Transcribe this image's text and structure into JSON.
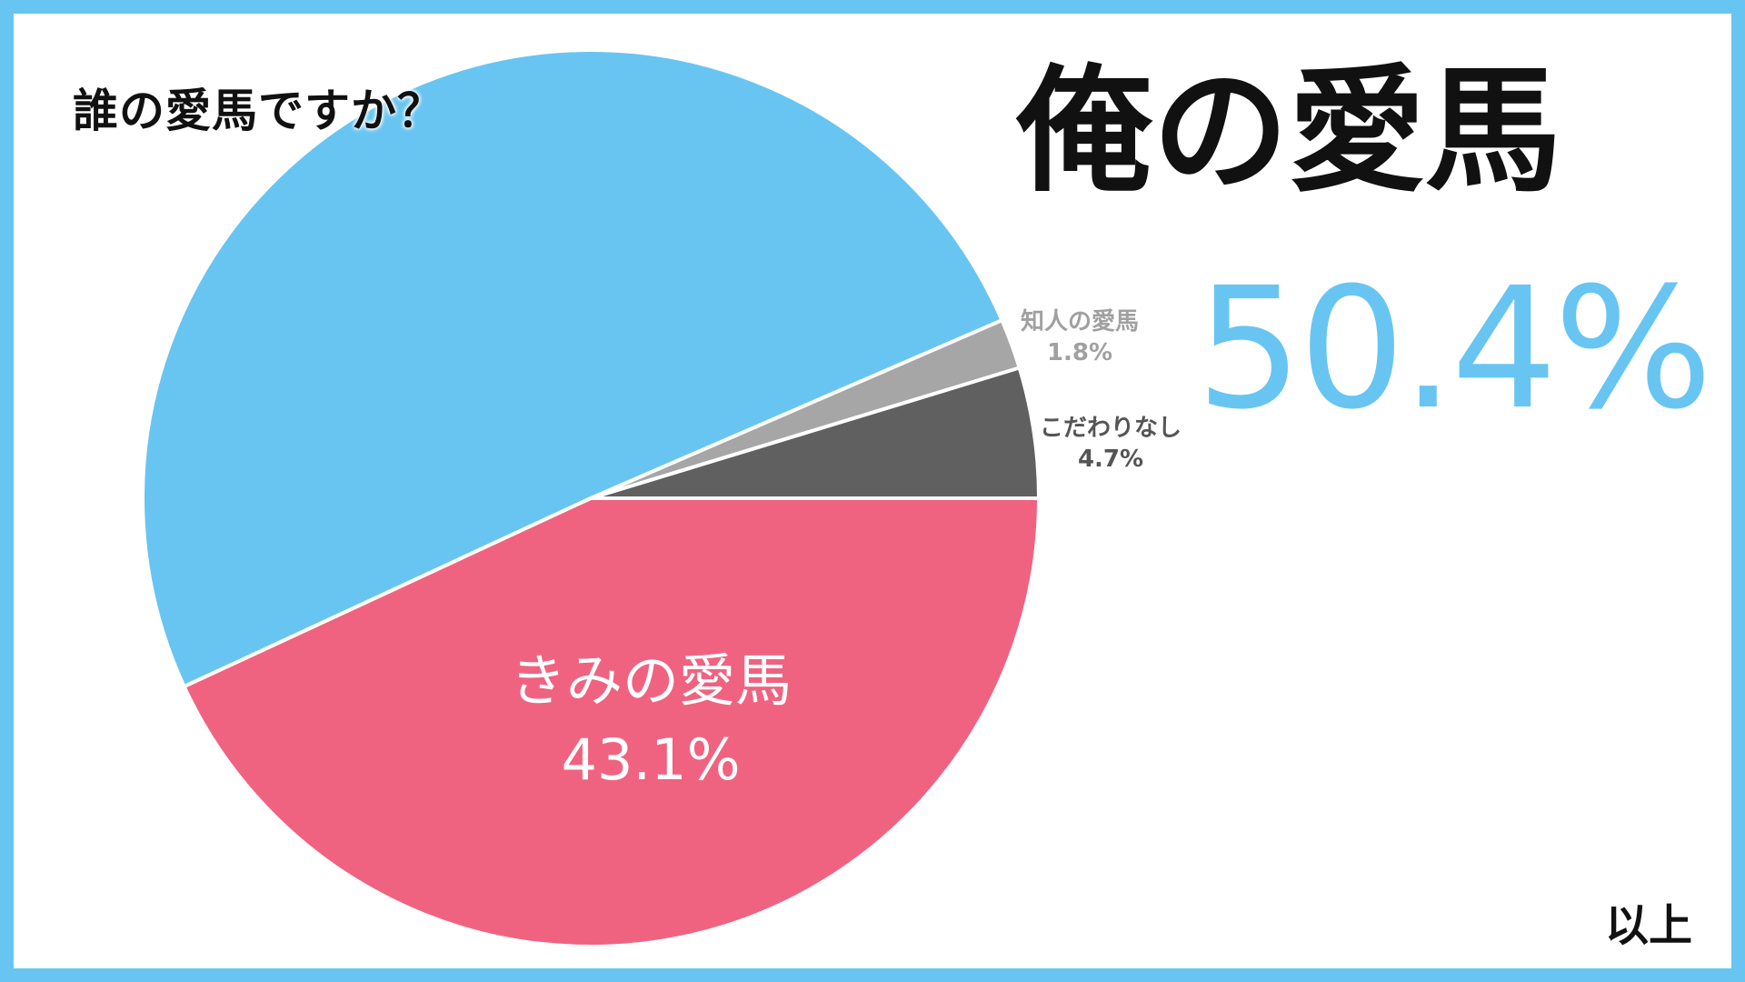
{
  "question": "誰の愛馬ですか？",
  "headline": "俺の愛馬",
  "headline_percent": "50.4%",
  "footer": "以上",
  "colors": {
    "frame": "#68c5f2",
    "ore": "#68c5f2",
    "kimi": "#f06380",
    "chijin": "#a6a6a6",
    "kodawari": "#606060"
  },
  "chart_data": {
    "type": "pie",
    "title": "誰の愛馬ですか？",
    "slices": [
      {
        "name": "俺の愛馬",
        "value": 50.4,
        "color": "#68c5f2"
      },
      {
        "name": "知人の愛馬",
        "value": 1.8,
        "color": "#a6a6a6",
        "value_label": "1.8%"
      },
      {
        "name": "こだわりなし",
        "value": 4.7,
        "color": "#606060",
        "value_label": "4.7%"
      },
      {
        "name": "きみの愛馬",
        "value": 43.1,
        "color": "#f06380",
        "value_label": "43.1%"
      }
    ]
  }
}
